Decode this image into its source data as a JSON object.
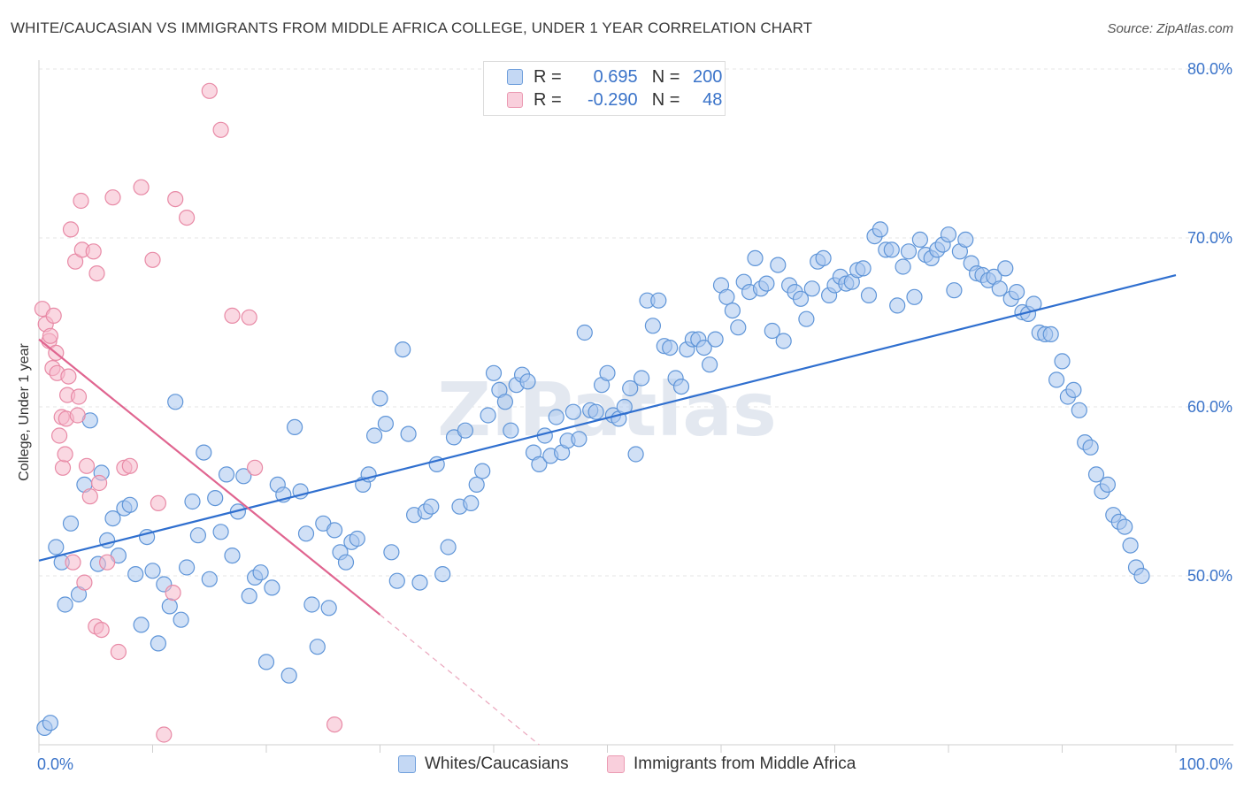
{
  "title": "WHITE/CAUCASIAN VS IMMIGRANTS FROM MIDDLE AFRICA COLLEGE, UNDER 1 YEAR CORRELATION CHART",
  "source": "Source: ZipAtlas.com",
  "watermark": "ZIPatlas",
  "legend_top": {
    "rows": [
      {
        "r_label": "R =",
        "r_value": "0.695",
        "n_label": "N =",
        "n_value": "200",
        "color": "#a9c6ef"
      },
      {
        "r_label": "R =",
        "r_value": "-0.290",
        "n_label": "N =",
        "n_value": "48",
        "color": "#f6b8cb"
      }
    ]
  },
  "chart_data": {
    "type": "scatter",
    "title": "WHITE/CAUCASIAN VS IMMIGRANTS FROM MIDDLE AFRICA COLLEGE, UNDER 1 YEAR CORRELATION CHART",
    "xlabel": "",
    "ylabel": "College, Under 1 year",
    "xlim": [
      0,
      100
    ],
    "ylim": [
      40,
      82
    ],
    "x_tick_labels": [
      "0.0%",
      "100.0%"
    ],
    "y_ticks": [
      50,
      60,
      70,
      80
    ],
    "y_tick_labels": [
      "50.0%",
      "60.0%",
      "70.0%",
      "80.0%"
    ],
    "grid": true,
    "legend_position": "bottom",
    "colors": {
      "blue_fill": "#a9c6ef",
      "blue_edge": "#5f95d8",
      "blue_line": "#2f6fcf",
      "pink_fill": "#f6b8cb",
      "pink_edge": "#e88aa6",
      "pink_line": "#e06590",
      "tick": "#3a73c9"
    },
    "series": [
      {
        "name": "Whites/Caucasians",
        "r": 0.695,
        "n": 200,
        "trend": {
          "x": [
            0,
            100
          ],
          "y": [
            50.9,
            67.8
          ]
        },
        "points": [
          [
            0.5,
            41.0
          ],
          [
            1.0,
            41.3
          ],
          [
            1.5,
            51.7
          ],
          [
            2.0,
            50.8
          ],
          [
            2.3,
            48.3
          ],
          [
            2.8,
            53.1
          ],
          [
            3.5,
            48.9
          ],
          [
            4.0,
            55.4
          ],
          [
            4.5,
            59.2
          ],
          [
            5.2,
            50.7
          ],
          [
            5.5,
            56.1
          ],
          [
            6.0,
            52.1
          ],
          [
            6.5,
            53.4
          ],
          [
            7.0,
            51.2
          ],
          [
            7.5,
            54.0
          ],
          [
            8.0,
            54.2
          ],
          [
            8.5,
            50.1
          ],
          [
            9.0,
            47.1
          ],
          [
            9.5,
            52.3
          ],
          [
            10.0,
            50.3
          ],
          [
            10.5,
            46.0
          ],
          [
            11.0,
            49.5
          ],
          [
            11.5,
            48.2
          ],
          [
            12.0,
            60.3
          ],
          [
            12.5,
            47.4
          ],
          [
            13.0,
            50.5
          ],
          [
            13.5,
            54.4
          ],
          [
            14.0,
            52.4
          ],
          [
            14.5,
            57.3
          ],
          [
            15.0,
            49.8
          ],
          [
            15.5,
            54.6
          ],
          [
            16.0,
            52.6
          ],
          [
            16.5,
            56.0
          ],
          [
            17.0,
            51.2
          ],
          [
            17.5,
            53.8
          ],
          [
            18.0,
            55.9
          ],
          [
            18.5,
            48.8
          ],
          [
            19.0,
            49.9
          ],
          [
            19.5,
            50.2
          ],
          [
            20.0,
            44.9
          ],
          [
            20.5,
            49.3
          ],
          [
            21.0,
            55.4
          ],
          [
            21.5,
            54.8
          ],
          [
            22.0,
            44.1
          ],
          [
            22.5,
            58.8
          ],
          [
            23.0,
            55.0
          ],
          [
            23.5,
            52.5
          ],
          [
            24.0,
            48.3
          ],
          [
            24.5,
            45.8
          ],
          [
            25.0,
            53.1
          ],
          [
            25.5,
            48.1
          ],
          [
            26.0,
            52.7
          ],
          [
            26.5,
            51.4
          ],
          [
            27.0,
            50.8
          ],
          [
            27.5,
            52.0
          ],
          [
            28.0,
            52.2
          ],
          [
            28.5,
            55.4
          ],
          [
            29.0,
            56.0
          ],
          [
            29.5,
            58.3
          ],
          [
            30.0,
            60.5
          ],
          [
            30.5,
            59.0
          ],
          [
            31.0,
            51.4
          ],
          [
            31.5,
            49.7
          ],
          [
            32.0,
            63.4
          ],
          [
            32.5,
            58.4
          ],
          [
            33.0,
            53.6
          ],
          [
            33.5,
            49.6
          ],
          [
            34.0,
            53.8
          ],
          [
            34.5,
            54.1
          ],
          [
            35.0,
            56.6
          ],
          [
            35.5,
            50.1
          ],
          [
            36.0,
            51.7
          ],
          [
            36.5,
            58.2
          ],
          [
            37.0,
            54.1
          ],
          [
            37.5,
            58.6
          ],
          [
            38.0,
            54.3
          ],
          [
            38.5,
            55.4
          ],
          [
            39.0,
            56.2
          ],
          [
            39.5,
            59.5
          ],
          [
            40.0,
            62.0
          ],
          [
            40.5,
            61.0
          ],
          [
            41.0,
            60.3
          ],
          [
            41.5,
            58.6
          ],
          [
            42.0,
            61.3
          ],
          [
            42.5,
            61.9
          ],
          [
            43.0,
            61.5
          ],
          [
            43.5,
            57.3
          ],
          [
            44.0,
            56.6
          ],
          [
            44.5,
            58.3
          ],
          [
            45.0,
            57.1
          ],
          [
            45.5,
            59.4
          ],
          [
            46.0,
            57.3
          ],
          [
            46.5,
            58.0
          ],
          [
            47.0,
            59.7
          ],
          [
            47.5,
            58.1
          ],
          [
            48.0,
            64.4
          ],
          [
            48.5,
            59.8
          ],
          [
            49.0,
            59.7
          ],
          [
            49.5,
            61.3
          ],
          [
            50.0,
            62.0
          ],
          [
            50.5,
            59.5
          ],
          [
            51.0,
            59.3
          ],
          [
            51.5,
            60.0
          ],
          [
            52.0,
            61.1
          ],
          [
            52.5,
            57.2
          ],
          [
            53.0,
            61.7
          ],
          [
            53.5,
            66.3
          ],
          [
            54.0,
            64.8
          ],
          [
            54.5,
            66.3
          ],
          [
            55.0,
            63.6
          ],
          [
            55.5,
            63.5
          ],
          [
            56.0,
            61.7
          ],
          [
            56.5,
            61.2
          ],
          [
            57.0,
            63.4
          ],
          [
            57.5,
            64.0
          ],
          [
            58.0,
            64.0
          ],
          [
            58.5,
            63.5
          ],
          [
            59.0,
            62.5
          ],
          [
            59.5,
            64.0
          ],
          [
            60.0,
            67.2
          ],
          [
            60.5,
            66.5
          ],
          [
            61.0,
            65.7
          ],
          [
            61.5,
            64.7
          ],
          [
            62.0,
            67.4
          ],
          [
            62.5,
            66.8
          ],
          [
            63.0,
            68.8
          ],
          [
            63.5,
            67.0
          ],
          [
            64.0,
            67.3
          ],
          [
            64.5,
            64.5
          ],
          [
            65.0,
            68.4
          ],
          [
            65.5,
            63.9
          ],
          [
            66.0,
            67.2
          ],
          [
            66.5,
            66.8
          ],
          [
            67.0,
            66.4
          ],
          [
            67.5,
            65.2
          ],
          [
            68.0,
            67.0
          ],
          [
            68.5,
            68.6
          ],
          [
            69.0,
            68.8
          ],
          [
            69.5,
            66.6
          ],
          [
            70.0,
            67.2
          ],
          [
            70.5,
            67.7
          ],
          [
            71.0,
            67.3
          ],
          [
            71.5,
            67.4
          ],
          [
            72.0,
            68.1
          ],
          [
            72.5,
            68.2
          ],
          [
            73.0,
            66.6
          ],
          [
            73.5,
            70.1
          ],
          [
            74.0,
            70.5
          ],
          [
            74.5,
            69.3
          ],
          [
            75.0,
            69.3
          ],
          [
            75.5,
            66.0
          ],
          [
            76.0,
            68.3
          ],
          [
            76.5,
            69.2
          ],
          [
            77.0,
            66.5
          ],
          [
            77.5,
            69.9
          ],
          [
            78.0,
            69.0
          ],
          [
            78.5,
            68.8
          ],
          [
            79.0,
            69.3
          ],
          [
            79.5,
            69.6
          ],
          [
            80.0,
            70.2
          ],
          [
            80.5,
            66.9
          ],
          [
            81.0,
            69.2
          ],
          [
            81.5,
            69.9
          ],
          [
            82.0,
            68.5
          ],
          [
            82.5,
            67.9
          ],
          [
            83.0,
            67.8
          ],
          [
            83.5,
            67.5
          ],
          [
            84.0,
            67.7
          ],
          [
            84.5,
            67.0
          ],
          [
            85.0,
            68.2
          ],
          [
            85.5,
            66.4
          ],
          [
            86.0,
            66.8
          ],
          [
            86.5,
            65.6
          ],
          [
            87.0,
            65.5
          ],
          [
            87.5,
            66.1
          ],
          [
            88.0,
            64.4
          ],
          [
            88.5,
            64.3
          ],
          [
            89.0,
            64.3
          ],
          [
            89.5,
            61.6
          ],
          [
            90.0,
            62.7
          ],
          [
            90.5,
            60.6
          ],
          [
            91.0,
            61.0
          ],
          [
            91.5,
            59.8
          ],
          [
            92.0,
            57.9
          ],
          [
            92.5,
            57.6
          ],
          [
            93.0,
            56.0
          ],
          [
            93.5,
            55.0
          ],
          [
            94.0,
            55.4
          ],
          [
            94.5,
            53.6
          ],
          [
            95.0,
            53.2
          ],
          [
            95.5,
            52.9
          ],
          [
            96.0,
            51.8
          ],
          [
            96.5,
            50.5
          ],
          [
            97.0,
            50.0
          ]
        ]
      },
      {
        "name": "Immigrants from Middle Africa",
        "r": -0.29,
        "n": 48,
        "trend": {
          "x": [
            0,
            30
          ],
          "y": [
            64.0,
            47.7
          ]
        },
        "trend_dashed": {
          "x": [
            30,
            44
          ],
          "y": [
            47.7,
            40.0
          ]
        },
        "points": [
          [
            0.3,
            65.8
          ],
          [
            0.6,
            64.9
          ],
          [
            0.9,
            63.9
          ],
          [
            1.0,
            64.2
          ],
          [
            1.2,
            62.3
          ],
          [
            1.3,
            65.4
          ],
          [
            1.5,
            63.2
          ],
          [
            1.6,
            62.0
          ],
          [
            1.8,
            58.3
          ],
          [
            2.0,
            59.4
          ],
          [
            2.1,
            56.4
          ],
          [
            2.3,
            57.2
          ],
          [
            2.4,
            59.3
          ],
          [
            2.5,
            60.7
          ],
          [
            2.6,
            61.8
          ],
          [
            2.8,
            70.5
          ],
          [
            3.0,
            50.8
          ],
          [
            3.2,
            68.6
          ],
          [
            3.4,
            59.5
          ],
          [
            3.5,
            60.6
          ],
          [
            3.7,
            72.2
          ],
          [
            3.8,
            69.3
          ],
          [
            4.0,
            49.6
          ],
          [
            4.2,
            56.5
          ],
          [
            4.5,
            54.7
          ],
          [
            4.8,
            69.2
          ],
          [
            5.0,
            47.0
          ],
          [
            5.1,
            67.9
          ],
          [
            5.3,
            55.5
          ],
          [
            5.5,
            46.8
          ],
          [
            6.0,
            50.8
          ],
          [
            6.5,
            72.4
          ],
          [
            7.0,
            45.5
          ],
          [
            7.5,
            56.4
          ],
          [
            8.0,
            56.5
          ],
          [
            9.0,
            73.0
          ],
          [
            10.0,
            68.7
          ],
          [
            10.5,
            54.3
          ],
          [
            11.0,
            40.6
          ],
          [
            11.8,
            49.0
          ],
          [
            12.0,
            72.3
          ],
          [
            13.0,
            71.2
          ],
          [
            15.0,
            78.7
          ],
          [
            16.0,
            76.4
          ],
          [
            17.0,
            65.4
          ],
          [
            18.5,
            65.3
          ],
          [
            19.0,
            56.4
          ],
          [
            26.0,
            41.2
          ]
        ]
      }
    ]
  },
  "legend_bottom": [
    {
      "label": "Whites/Caucasians",
      "color": "#a9c6ef"
    },
    {
      "label": "Immigrants from Middle Africa",
      "color": "#f6b8cb"
    }
  ]
}
